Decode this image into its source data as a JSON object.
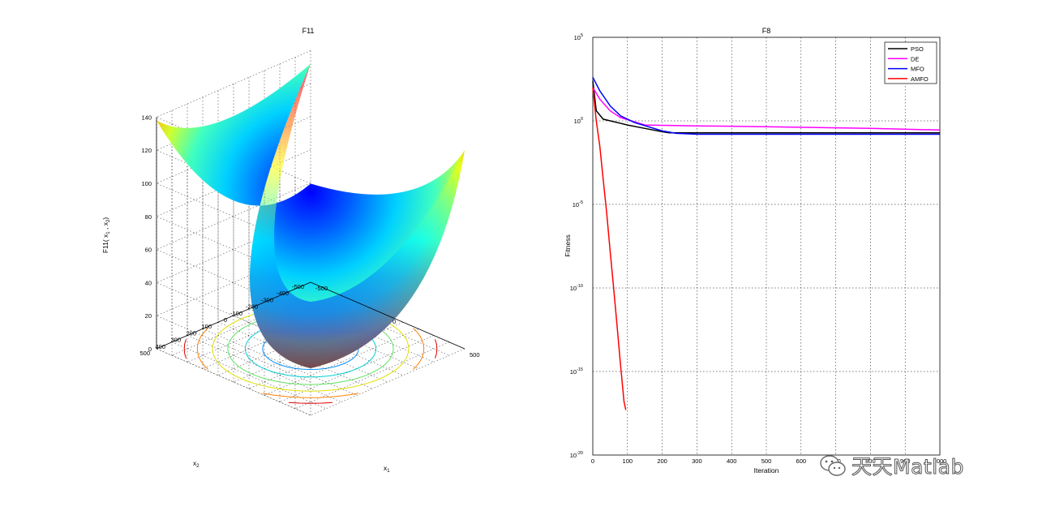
{
  "chart_data": [
    {
      "type": "surface",
      "title": "F11",
      "xlabel": "x",
      "xlabel_sub": "1",
      "ylabel": "x",
      "ylabel_sub": "2",
      "zlabel": "F11( x",
      "zlabel_sub1": "1",
      "zlabel_mid": " , x",
      "zlabel_sub2": "2",
      "zlabel_end": ")",
      "xlim": [
        -500,
        500
      ],
      "ylim": [
        -500,
        500
      ],
      "zlim": [
        0,
        140
      ],
      "xticks": [
        "-500",
        "0",
        "500"
      ],
      "yticks": [
        "500",
        "400",
        "300",
        "200",
        "100",
        "0",
        "-100",
        "-200",
        "-300",
        "-400",
        "-500"
      ],
      "zticks": [
        "0",
        "20",
        "40",
        "60",
        "80",
        "100",
        "120",
        "140"
      ],
      "colormap": "jet",
      "contours": true,
      "grid": true
    },
    {
      "type": "line",
      "title": "F8",
      "xlabel": "Iteration",
      "ylabel": "Fitness",
      "yscale": "log",
      "xlim": [
        0,
        1000
      ],
      "ylim_exp": [
        -20,
        5
      ],
      "xticks": [
        "0",
        "100",
        "200",
        "300",
        "400",
        "500",
        "600",
        "700",
        "800",
        "900",
        "1000"
      ],
      "yticks": [
        {
          "base": "10",
          "exp": "5"
        },
        {
          "base": "10",
          "exp": "0"
        },
        {
          "base": "10",
          "exp": "-5"
        },
        {
          "base": "10",
          "exp": "-10"
        },
        {
          "base": "10",
          "exp": "-15"
        },
        {
          "base": "10",
          "exp": "-20"
        }
      ],
      "legend_position": "top-right",
      "grid": true,
      "series": [
        {
          "name": "PSO",
          "color": "#000000",
          "x": [
            0,
            10,
            30,
            100,
            150,
            200,
            220,
            300,
            500,
            1000
          ],
          "log10y": [
            2.4,
            0.6,
            0.1,
            -0.25,
            -0.45,
            -0.65,
            -0.72,
            -0.72,
            -0.72,
            -0.72
          ]
        },
        {
          "name": "DE",
          "color": "#ff00ff",
          "x": [
            0,
            20,
            50,
            80,
            150,
            300,
            500,
            800,
            1000
          ],
          "log10y": [
            2.0,
            1.3,
            0.6,
            0.2,
            -0.25,
            -0.3,
            -0.35,
            -0.45,
            -0.55
          ]
        },
        {
          "name": "MFO",
          "color": "#0000ff",
          "x": [
            0,
            20,
            50,
            80,
            120,
            200,
            240,
            300,
            500,
            1000
          ],
          "log10y": [
            2.6,
            1.8,
            0.9,
            0.3,
            -0.1,
            -0.6,
            -0.75,
            -0.8,
            -0.8,
            -0.8
          ]
        },
        {
          "name": "AMFO",
          "color": "#ff0000",
          "x": [
            0,
            10,
            20,
            30,
            40,
            50,
            60,
            70,
            80,
            90,
            95
          ],
          "log10y": [
            2.0,
            0.0,
            -1.5,
            -3.5,
            -5.5,
            -7.8,
            -10.0,
            -12.3,
            -14.6,
            -16.8,
            -17.3
          ]
        }
      ]
    }
  ],
  "watermark": {
    "text": "天天Matlab"
  }
}
